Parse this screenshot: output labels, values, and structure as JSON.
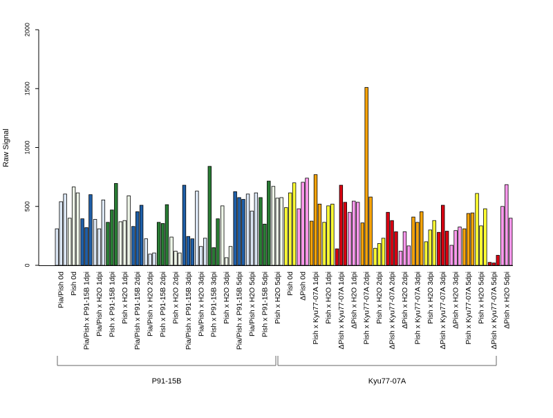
{
  "chart_data": {
    "type": "bar",
    "title": "",
    "xlabel": "",
    "ylabel": "Raw Signal",
    "ylim": [
      0,
      2000
    ],
    "yticks": [
      0,
      500,
      1000,
      1500,
      2000
    ],
    "grid": false,
    "legend": "none",
    "categories": [
      "Pia/Pish 0d",
      "Pish 0d",
      "Pia/Pish x P91-15B 1dpi",
      "Pia/Pish x H2O 1dpi",
      "Pish x P91-15B 1dpi",
      "Pish x H2O 1dpi",
      "Pia/Pish x P91-15B 2dpi",
      "Pia/Pish x H2O 2dpi",
      "Pish x P91-15B 2dpi",
      "Pish x H2O 2dpi",
      "Pia/Pish x P91-15B 3dpi",
      "Pia/Pish x H2O 3dpi",
      "Pish x P91-15B 3dpi",
      "Pish x H2O 3dpi",
      "Pia/Pish x P91-15B 5dpi",
      "Pia/Pish x H2O 5dpi",
      "Pish x P91-15B 5dpi",
      "Pish x H2O 5dpi",
      "Pish 0d",
      "ΔPish 0d",
      "Pish x Kyu77-07A 1dpi",
      "Pish x H2O 1dpi",
      "ΔPish x Kyu77-07A 1dpi",
      "ΔPish x H2O 1dpi",
      "Pish x Kyu77-07A 2dpi",
      "Pish x H2O 2dpi",
      "ΔPish x Kyu77-07A 2dpi",
      "ΔPish x H2O 2dpi",
      "Pish x Kyu77-07A 3dpi",
      "Pish x H2O 3dpi",
      "ΔPish x Kyu77-07A 3dpi",
      "ΔPish x H2O 3dpi",
      "Pish x Kyu77-07A 5dpi",
      "Pish x H2O 5dpi",
      "ΔPish x Kyu77-07A 5dpi",
      "ΔPish x H2O 5dpi"
    ],
    "category_colors": [
      "#dbe6f4",
      "#eef6e8",
      "#1f5fa8",
      "#dbe6f4",
      "#2a7d35",
      "#eef6e8",
      "#1f5fa8",
      "#dbe6f4",
      "#2a7d35",
      "#eef6e8",
      "#1f5fa8",
      "#dbe6f4",
      "#2a7d35",
      "#eef6e8",
      "#1f5fa8",
      "#dbe6f4",
      "#2a7d35",
      "#eef6e8",
      "#ffff33",
      "#ff99ee",
      "#f5a30a",
      "#ffff33",
      "#d90012",
      "#ff99ee",
      "#f5a30a",
      "#ffff33",
      "#d90012",
      "#ff99ee",
      "#f5a30a",
      "#ffff33",
      "#d90012",
      "#ff99ee",
      "#f5a30a",
      "#ffff33",
      "#d90012",
      "#ff99ee"
    ],
    "values": [
      [
        310,
        540,
        605
      ],
      [
        400,
        665,
        615
      ],
      [
        395,
        320,
        600
      ],
      [
        390,
        310,
        555
      ],
      [
        365,
        470,
        695
      ],
      [
        370,
        380,
        590
      ],
      [
        330,
        455,
        510
      ],
      [
        225,
        95,
        105
      ],
      [
        365,
        355,
        515
      ],
      [
        240,
        120,
        105
      ],
      [
        680,
        245,
        225
      ],
      [
        630,
        160,
        230
      ],
      [
        840,
        150,
        395
      ],
      [
        505,
        65,
        160
      ],
      [
        625,
        575,
        560
      ],
      [
        605,
        460,
        615
      ],
      [
        575,
        350,
        715
      ],
      [
        670,
        570,
        575
      ],
      [
        490,
        615,
        700
      ],
      [
        480,
        705,
        740
      ],
      [
        375,
        770,
        520
      ],
      [
        365,
        505,
        520
      ],
      [
        140,
        680,
        535
      ],
      [
        450,
        545,
        535
      ],
      [
        360,
        1510,
        580
      ],
      [
        145,
        185,
        230
      ],
      [
        450,
        380,
        285
      ],
      [
        120,
        285,
        165
      ],
      [
        410,
        365,
        455
      ],
      [
        200,
        300,
        380
      ],
      [
        280,
        510,
        290
      ],
      [
        170,
        295,
        325
      ],
      [
        310,
        440,
        445
      ],
      [
        610,
        335,
        480
      ],
      [
        25,
        20,
        85
      ],
      [
        500,
        685,
        400
      ]
    ],
    "groups": [
      {
        "label": "P91-15B",
        "from": 0,
        "to": 17
      },
      {
        "label": "Kyu77-07A",
        "from": 18,
        "to": 35
      }
    ]
  }
}
